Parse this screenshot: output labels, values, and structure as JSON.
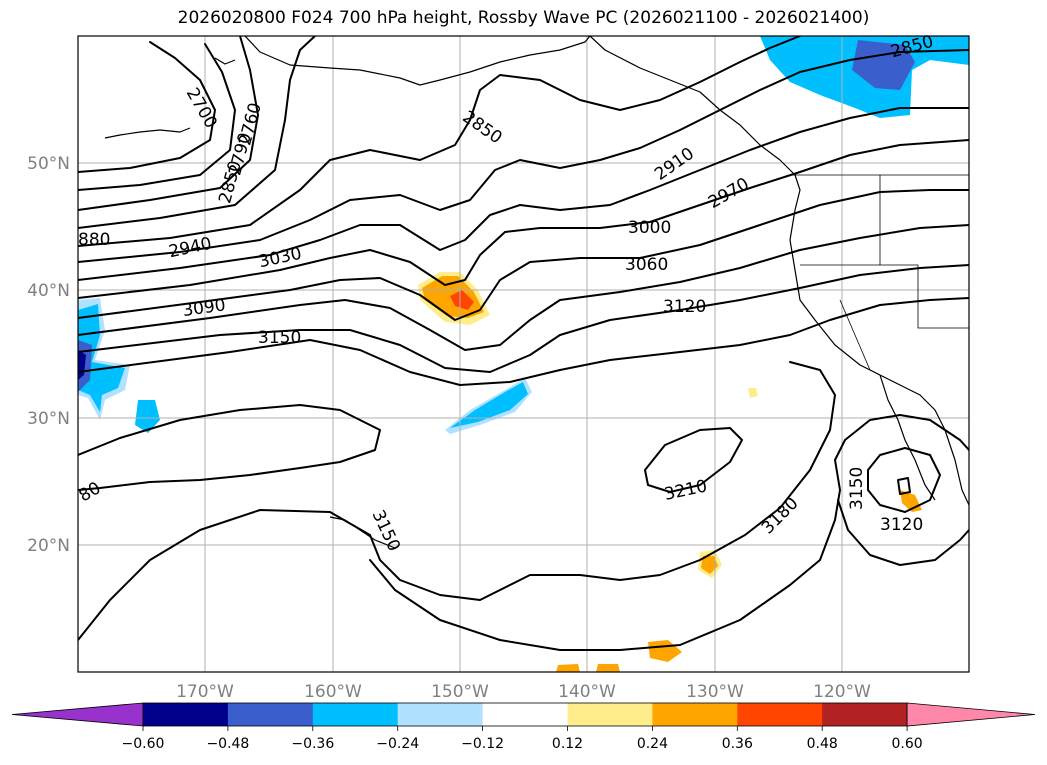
{
  "title": "2026020800 F024 700 hPa height, Rossby Wave PC (2026021100 - 2026021400)",
  "lat_labels": [
    "50°N",
    "40°N",
    "30°N",
    "20°N"
  ],
  "lon_labels": [
    "170°W",
    "160°W",
    "150°W",
    "140°W",
    "130°W",
    "120°W"
  ],
  "contour_labels": [
    "2850",
    "2910",
    "2970",
    "3000",
    "3060",
    "3120",
    "3030",
    "2940",
    "3090",
    "3150",
    "3210",
    "3180",
    "3150",
    "3120",
    "3150",
    "2850",
    "880",
    "80",
    "2850",
    "2790",
    "2760",
    "2700"
  ],
  "colorbar": {
    "ticks": [
      "−0.60",
      "−0.48",
      "−0.36",
      "−0.24",
      "−0.12",
      "0.12",
      "0.24",
      "0.36",
      "0.48",
      "0.60"
    ],
    "colors": [
      "#9932cc",
      "#00008b",
      "#3a5fcd",
      "#00bfff",
      "#b0e2ff",
      "#ffffff",
      "#ffec8b",
      "#ffa500",
      "#ff4500",
      "#b22222",
      "#ff88aa"
    ]
  }
}
